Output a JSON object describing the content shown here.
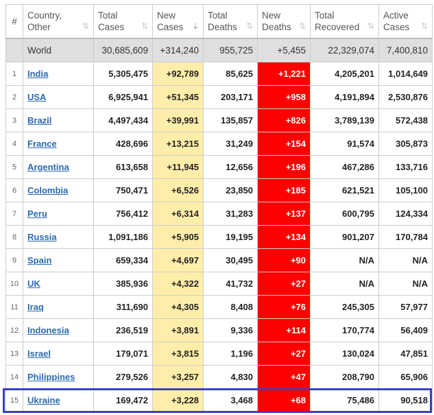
{
  "headers": [
    "#",
    "Country, Other",
    "Total Cases",
    "New Cases",
    "Total Deaths",
    "New Deaths",
    "Total Recovered",
    "Active Cases"
  ],
  "header_lines": [
    [
      "#",
      ""
    ],
    [
      "Country,",
      "Other"
    ],
    [
      "Total",
      "Cases"
    ],
    [
      "New",
      "Cases"
    ],
    [
      "Total",
      "Deaths"
    ],
    [
      "New",
      "Deaths"
    ],
    [
      "Total",
      "Recovered"
    ],
    [
      "Active",
      "Cases"
    ]
  ],
  "sorted_column": "New Cases",
  "world": {
    "country": "World",
    "total_cases": "30,685,609",
    "new_cases": "+314,240",
    "total_deaths": "955,725",
    "new_deaths": "+5,455",
    "total_recovered": "22,329,074",
    "active_cases": "7,400,810"
  },
  "rows": [
    {
      "num": "1",
      "country": "India",
      "total_cases": "5,305,475",
      "new_cases": "+92,789",
      "total_deaths": "85,625",
      "new_deaths": "+1,221",
      "total_recovered": "4,205,201",
      "active_cases": "1,014,649"
    },
    {
      "num": "2",
      "country": "USA",
      "total_cases": "6,925,941",
      "new_cases": "+51,345",
      "total_deaths": "203,171",
      "new_deaths": "+958",
      "total_recovered": "4,191,894",
      "active_cases": "2,530,876"
    },
    {
      "num": "3",
      "country": "Brazil",
      "total_cases": "4,497,434",
      "new_cases": "+39,991",
      "total_deaths": "135,857",
      "new_deaths": "+826",
      "total_recovered": "3,789,139",
      "active_cases": "572,438"
    },
    {
      "num": "4",
      "country": "France",
      "total_cases": "428,696",
      "new_cases": "+13,215",
      "total_deaths": "31,249",
      "new_deaths": "+154",
      "total_recovered": "91,574",
      "active_cases": "305,873"
    },
    {
      "num": "5",
      "country": "Argentina",
      "total_cases": "613,658",
      "new_cases": "+11,945",
      "total_deaths": "12,656",
      "new_deaths": "+196",
      "total_recovered": "467,286",
      "active_cases": "133,716"
    },
    {
      "num": "6",
      "country": "Colombia",
      "total_cases": "750,471",
      "new_cases": "+6,526",
      "total_deaths": "23,850",
      "new_deaths": "+185",
      "total_recovered": "621,521",
      "active_cases": "105,100"
    },
    {
      "num": "7",
      "country": "Peru",
      "total_cases": "756,412",
      "new_cases": "+6,314",
      "total_deaths": "31,283",
      "new_deaths": "+137",
      "total_recovered": "600,795",
      "active_cases": "124,334"
    },
    {
      "num": "8",
      "country": "Russia",
      "total_cases": "1,091,186",
      "new_cases": "+5,905",
      "total_deaths": "19,195",
      "new_deaths": "+134",
      "total_recovered": "901,207",
      "active_cases": "170,784"
    },
    {
      "num": "9",
      "country": "Spain",
      "total_cases": "659,334",
      "new_cases": "+4,697",
      "total_deaths": "30,495",
      "new_deaths": "+90",
      "total_recovered": "N/A",
      "active_cases": "N/A"
    },
    {
      "num": "10",
      "country": "UK",
      "total_cases": "385,936",
      "new_cases": "+4,322",
      "total_deaths": "41,732",
      "new_deaths": "+27",
      "total_recovered": "N/A",
      "active_cases": "N/A"
    },
    {
      "num": "11",
      "country": "Iraq",
      "total_cases": "311,690",
      "new_cases": "+4,305",
      "total_deaths": "8,408",
      "new_deaths": "+76",
      "total_recovered": "245,305",
      "active_cases": "57,977"
    },
    {
      "num": "12",
      "country": "Indonesia",
      "total_cases": "236,519",
      "new_cases": "+3,891",
      "total_deaths": "9,336",
      "new_deaths": "+114",
      "total_recovered": "170,774",
      "active_cases": "56,409"
    },
    {
      "num": "13",
      "country": "Israel",
      "total_cases": "179,071",
      "new_cases": "+3,815",
      "total_deaths": "1,196",
      "new_deaths": "+27",
      "total_recovered": "130,024",
      "active_cases": "47,851"
    },
    {
      "num": "14",
      "country": "Philippines",
      "total_cases": "279,526",
      "new_cases": "+3,257",
      "total_deaths": "4,830",
      "new_deaths": "+47",
      "total_recovered": "208,790",
      "active_cases": "65,906"
    },
    {
      "num": "15",
      "country": "Ukraine",
      "total_cases": "169,472",
      "new_cases": "+3,228",
      "total_deaths": "3,468",
      "new_deaths": "+68",
      "total_recovered": "75,486",
      "active_cases": "90,518"
    }
  ],
  "highlighted_row": "Ukraine",
  "colors": {
    "new_cases_bg": "#ffeeaa",
    "new_deaths_bg": "#ff0000",
    "highlight_border": "#3b3fbf",
    "link": "#2a6ab0"
  }
}
